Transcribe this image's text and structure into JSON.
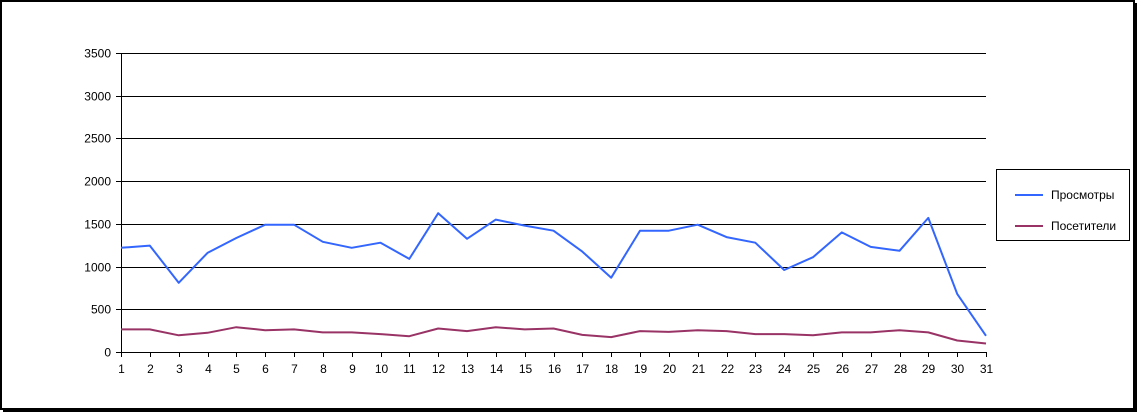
{
  "chart_data": {
    "type": "line",
    "title": "",
    "xlabel": "",
    "ylabel": "",
    "x": [
      1,
      2,
      3,
      4,
      5,
      6,
      7,
      8,
      9,
      10,
      11,
      12,
      13,
      14,
      15,
      16,
      17,
      18,
      19,
      20,
      21,
      22,
      23,
      24,
      25,
      26,
      27,
      28,
      29,
      30,
      31
    ],
    "ylim": [
      0,
      3500
    ],
    "yticks": [
      0,
      500,
      1000,
      1500,
      2000,
      2500,
      3000,
      3500
    ],
    "grid": "horizontal",
    "legend_position": "right",
    "series": [
      {
        "name": "Просмотры",
        "color": "#3366ff",
        "values": [
          1220,
          1245,
          810,
          1160,
          1335,
          1490,
          1490,
          1290,
          1220,
          1280,
          1090,
          1625,
          1325,
          1550,
          1480,
          1420,
          1175,
          870,
          1420,
          1420,
          1490,
          1345,
          1280,
          960,
          1110,
          1400,
          1230,
          1185,
          1570,
          680,
          190
        ]
      },
      {
        "name": "Посетители",
        "color": "#993366",
        "values": [
          265,
          265,
          195,
          225,
          290,
          255,
          265,
          230,
          230,
          210,
          185,
          275,
          245,
          290,
          265,
          275,
          200,
          175,
          245,
          235,
          255,
          245,
          210,
          210,
          195,
          230,
          230,
          255,
          230,
          135,
          100
        ]
      }
    ]
  }
}
